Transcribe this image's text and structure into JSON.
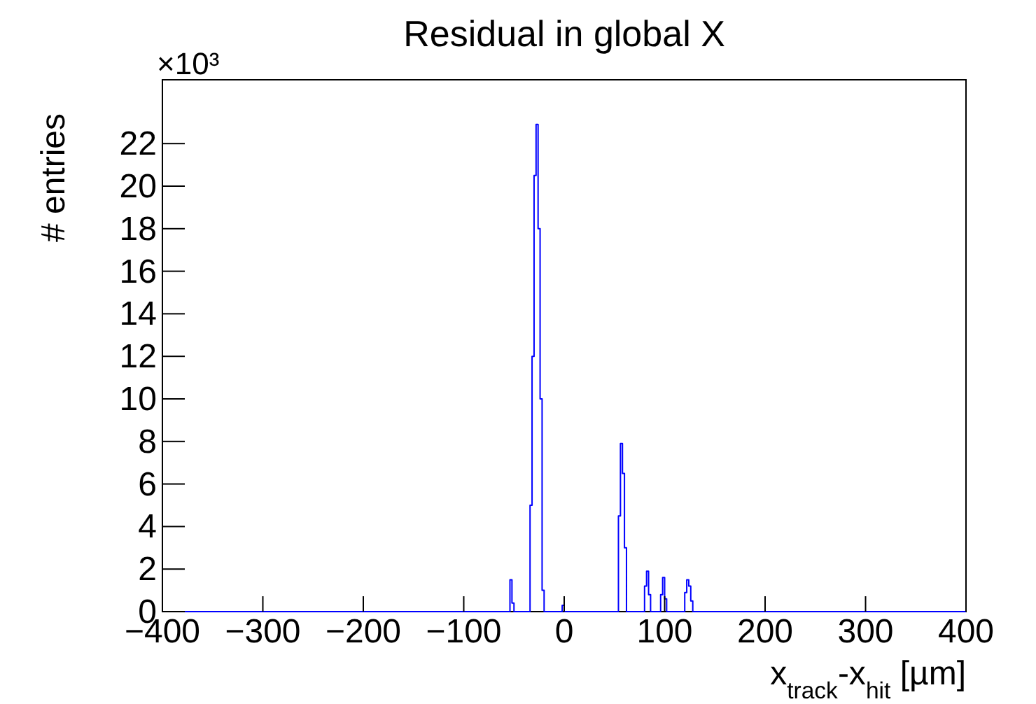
{
  "chart_data": {
    "type": "histogram",
    "title": "Residual in global X",
    "xlabel": "x$_{track}$-x$_{hit}$  [µm]",
    "ylabel": "# entries",
    "annotations": [
      "×10³"
    ],
    "bins": [
      -400,
      -60,
      -58,
      -56,
      -54,
      -52,
      -50,
      -48,
      -46,
      -44,
      -42,
      -40,
      -38,
      -36,
      -34,
      -32,
      -30,
      -28,
      -26,
      -24,
      -22,
      -20,
      -18,
      -16,
      -14,
      -12,
      -10,
      -8,
      -6,
      -4,
      -2,
      0,
      2,
      4,
      6,
      8,
      10,
      12,
      14,
      16,
      18,
      20,
      22,
      24,
      26,
      28,
      30,
      32,
      34,
      36,
      38,
      40,
      42,
      44,
      46,
      48,
      50,
      52,
      54,
      56,
      58,
      60,
      62,
      64,
      66,
      68,
      70,
      72,
      74,
      76,
      78,
      80,
      82,
      84,
      86,
      88,
      90,
      92,
      94,
      96,
      98,
      100,
      102,
      104,
      106,
      108,
      110,
      112,
      114,
      116,
      118,
      120,
      122,
      124,
      126,
      128,
      130,
      132,
      134,
      136,
      138,
      140,
      400
    ],
    "values": [
      0,
      0,
      0,
      0,
      1.5,
      0.4,
      0,
      0,
      0,
      0,
      0,
      0,
      0,
      0,
      5,
      12,
      20.5,
      22.9,
      18,
      10,
      1,
      0,
      0,
      0,
      0,
      0,
      0,
      0,
      0,
      0,
      0.3,
      0,
      0,
      0,
      0,
      0,
      0,
      0,
      0,
      0,
      0,
      0,
      0,
      0,
      0,
      0,
      0,
      0,
      0,
      0,
      0,
      0,
      0,
      0,
      0,
      0,
      0,
      0,
      4.5,
      7.9,
      6.5,
      3,
      0,
      0,
      0,
      0,
      0,
      0,
      0,
      0,
      0,
      1.2,
      1.9,
      0.8,
      0,
      0,
      0,
      0,
      0,
      0.8,
      1.6,
      0.6,
      0,
      0,
      0,
      0,
      0,
      0,
      0,
      0,
      0,
      0.9,
      1.5,
      1.2,
      0.5,
      0,
      0,
      0,
      0,
      0,
      0,
      0
    ],
    "color": "#0000ff",
    "xlim": [
      -400,
      400
    ],
    "xticks": [
      {
        "value": -400,
        "label": "−400"
      },
      {
        "value": -300,
        "label": "−300"
      },
      {
        "value": -200,
        "label": "−200"
      },
      {
        "value": -100,
        "label": "−100"
      },
      0,
      100,
      200,
      300,
      400
    ],
    "ylim": [
      0,
      25
    ],
    "yticks": [
      0,
      2,
      4,
      6,
      8,
      10,
      12,
      14,
      16,
      18,
      20,
      22
    ],
    "grid": false
  }
}
